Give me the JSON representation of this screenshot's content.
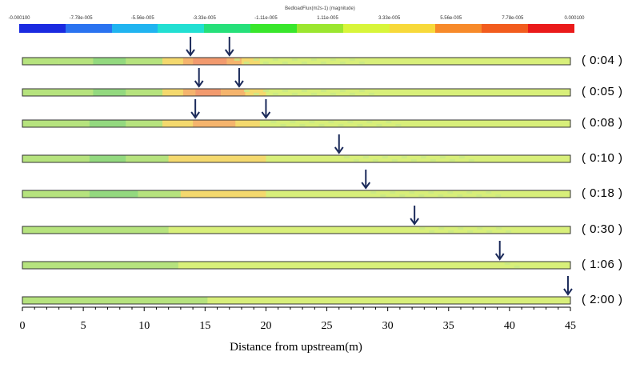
{
  "legend": {
    "title": "BedloadFlux(m2s-1) (magnitude)",
    "ticks": [
      "-0.000100",
      "-7.78e-005",
      "-5.56e-005",
      "-3.33e-005",
      "-1.11e-005",
      "1.11e-005",
      "3.33e-005",
      "5.56e-005",
      "7.78e-005",
      "0.000100"
    ],
    "tick_values": [
      -0.0001,
      -7.78e-05,
      -5.56e-05,
      -3.33e-05,
      -1.11e-05,
      1.11e-05,
      3.33e-05,
      5.56e-05,
      7.78e-05,
      0.0001
    ],
    "colors": [
      "#1a2ae0",
      "#2a73f0",
      "#20b4f0",
      "#22dfd2",
      "#26e07a",
      "#39e62c",
      "#9be62f",
      "#d8f53a",
      "#f7d93a",
      "#f78a2a",
      "#f25c1e",
      "#ea1a1a"
    ]
  },
  "colors": {
    "base": "#d8ef7a",
    "light_green": "#b6e37e",
    "green": "#93d97f",
    "yellow_orange": "#f4d96e",
    "orange": "#f5b46d",
    "salmon": "#f29a6e",
    "arrow": "#1b2a5a"
  },
  "xaxis": {
    "label": "Distance from upstream(m)",
    "ticks": [
      0,
      5,
      10,
      15,
      20,
      25,
      30,
      35,
      40,
      45
    ],
    "tick_labels": [
      "0",
      "5",
      "10",
      "15",
      "20",
      "25",
      "30",
      "35",
      "40",
      "45"
    ],
    "range": [
      0,
      45
    ]
  },
  "snapshots": [
    {
      "time": "( 0:04 )",
      "front_m": 17.0,
      "arrows_m": [
        13.8,
        17.0
      ],
      "segments": [
        {
          "from": 0,
          "to": 3,
          "color": "light_green"
        },
        {
          "from": 3,
          "to": 5.8,
          "color": "light_green"
        },
        {
          "from": 5.8,
          "to": 8.5,
          "color": "green"
        },
        {
          "from": 8.5,
          "to": 11.5,
          "color": "light_green"
        },
        {
          "from": 11.5,
          "to": 13.2,
          "color": "yellow_orange"
        },
        {
          "from": 13.2,
          "to": 14.0,
          "color": "orange"
        },
        {
          "from": 14.0,
          "to": 16.8,
          "color": "salmon"
        },
        {
          "from": 16.8,
          "to": 18.0,
          "color": "orange"
        },
        {
          "from": 18.0,
          "to": 19.5,
          "color": "yellow_orange"
        }
      ]
    },
    {
      "time": "( 0:05 )",
      "front_m": 17.8,
      "arrows_m": [
        14.5,
        17.8
      ],
      "segments": [
        {
          "from": 0,
          "to": 5.8,
          "color": "light_green"
        },
        {
          "from": 5.8,
          "to": 8.5,
          "color": "green"
        },
        {
          "from": 8.5,
          "to": 11.5,
          "color": "light_green"
        },
        {
          "from": 11.5,
          "to": 13.2,
          "color": "yellow_orange"
        },
        {
          "from": 13.2,
          "to": 14.2,
          "color": "orange"
        },
        {
          "from": 14.2,
          "to": 16.3,
          "color": "salmon"
        },
        {
          "from": 16.3,
          "to": 18.3,
          "color": "orange"
        },
        {
          "from": 18.3,
          "to": 20.0,
          "color": "yellow_orange"
        }
      ]
    },
    {
      "time": "( 0:08 )",
      "front_m": 20.0,
      "arrows_m": [
        14.2,
        20.0
      ],
      "segments": [
        {
          "from": 0,
          "to": 5.5,
          "color": "light_green"
        },
        {
          "from": 5.5,
          "to": 8.5,
          "color": "green"
        },
        {
          "from": 8.5,
          "to": 11.5,
          "color": "light_green"
        },
        {
          "from": 11.5,
          "to": 14.0,
          "color": "yellow_orange"
        },
        {
          "from": 14.0,
          "to": 17.5,
          "color": "orange"
        },
        {
          "from": 17.5,
          "to": 19.5,
          "color": "yellow_orange"
        }
      ]
    },
    {
      "time": "( 0:10 )",
      "front_m": 26.0,
      "arrows_m": [
        26.0
      ],
      "segments": [
        {
          "from": 0,
          "to": 5.5,
          "color": "light_green"
        },
        {
          "from": 5.5,
          "to": 8.5,
          "color": "green"
        },
        {
          "from": 8.5,
          "to": 12.0,
          "color": "light_green"
        },
        {
          "from": 12.0,
          "to": 20.0,
          "color": "yellow_orange"
        }
      ]
    },
    {
      "time": "( 0:18 )",
      "front_m": 28.2,
      "arrows_m": [
        28.2
      ],
      "segments": [
        {
          "from": 0,
          "to": 5.5,
          "color": "light_green"
        },
        {
          "from": 5.5,
          "to": 9.5,
          "color": "green"
        },
        {
          "from": 9.5,
          "to": 13.0,
          "color": "light_green"
        },
        {
          "from": 13.0,
          "to": 20.0,
          "color": "yellow_orange"
        }
      ]
    },
    {
      "time": "( 0:30 )",
      "front_m": 32.2,
      "arrows_m": [
        32.2
      ],
      "segments": [
        {
          "from": 0,
          "to": 12.0,
          "color": "light_green"
        }
      ]
    },
    {
      "time": "( 1:06 )",
      "front_m": 39.2,
      "arrows_m": [
        39.2
      ],
      "segments": [
        {
          "from": 0,
          "to": 12.8,
          "color": "light_green"
        }
      ]
    },
    {
      "time": "( 2:00 )",
      "front_m": 44.8,
      "arrows_m": [
        44.8
      ],
      "segments": [
        {
          "from": 0,
          "to": 15.2,
          "color": "light_green"
        }
      ]
    }
  ]
}
